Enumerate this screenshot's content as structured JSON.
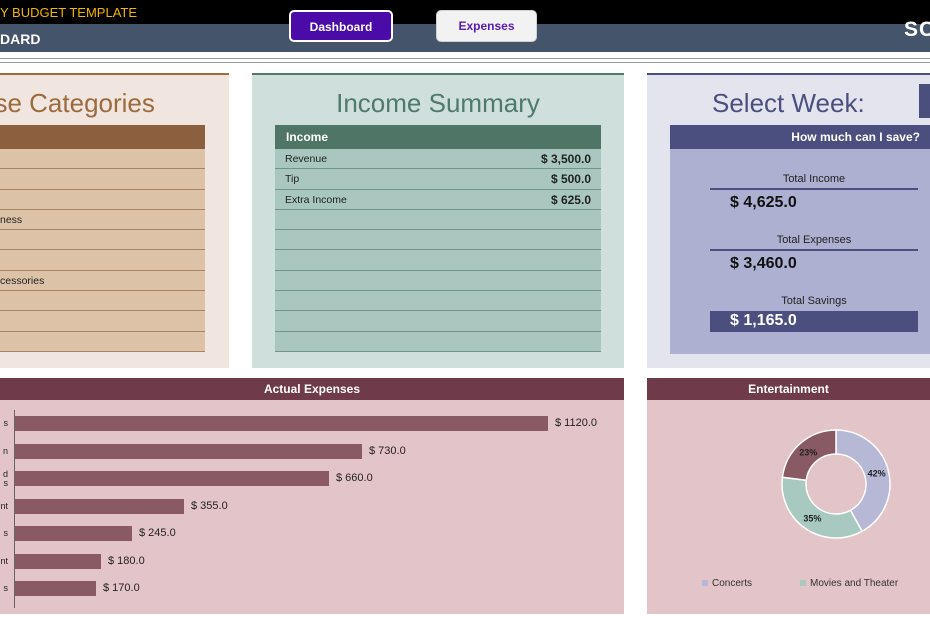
{
  "header": {
    "title_main": "Y BUDGET TEMPLATE",
    "title_sub": "DARD",
    "title_right": "SC",
    "nav": {
      "dashboard_label": "Dashboard",
      "expenses_label": "Expenses"
    }
  },
  "categories": {
    "title": "nse Categories",
    "rows": [
      "",
      "",
      "",
      "ness",
      "",
      "",
      "cessories",
      "",
      "",
      ""
    ]
  },
  "income": {
    "title": "Income Summary",
    "header": "Income",
    "rows": [
      {
        "label": "Revenue",
        "amount": "$  3,500.0"
      },
      {
        "label": "Tip",
        "amount": "$   500.0"
      },
      {
        "label": "Extra Income",
        "amount": "$   625.0"
      },
      {
        "label": "",
        "amount": ""
      },
      {
        "label": "",
        "amount": ""
      },
      {
        "label": "",
        "amount": ""
      },
      {
        "label": "",
        "amount": ""
      },
      {
        "label": "",
        "amount": ""
      },
      {
        "label": "",
        "amount": ""
      },
      {
        "label": "",
        "amount": ""
      }
    ]
  },
  "week": {
    "title": "Select Week:",
    "header": "How much can I save?",
    "total_income_label": "Total Income",
    "total_income_value": "$  4,625.0",
    "total_expenses_label": "Total Expenses",
    "total_expenses_value": "$  3,460.0",
    "total_savings_label": "Total Savings",
    "total_savings_value": "$  1,165.0"
  },
  "colors": {
    "bar": "#8a5a64",
    "concerts": "#b7b8d6",
    "movies": "#a7c9bf",
    "other": "#8a5a64"
  },
  "chart_data": [
    {
      "type": "bar",
      "title": "Actual Expenses",
      "categories": [
        "s",
        "n",
        "d\ns",
        "nt",
        "s",
        "nt",
        "s"
      ],
      "values": [
        1120,
        730,
        660,
        355,
        245,
        180,
        170
      ],
      "data_labels": [
        "$ 1120.0",
        "$ 730.0",
        "$ 660.0",
        "$ 355.0",
        "$ 245.0",
        "$ 180.0",
        "$ 170.0"
      ],
      "xlim": [
        0,
        1200
      ]
    },
    {
      "type": "pie",
      "title": "Entertainment",
      "slices": [
        {
          "name": "Concerts",
          "value": 42,
          "label": "42%"
        },
        {
          "name": "Movies and Theater",
          "value": 35,
          "label": "35%"
        },
        {
          "name": "",
          "value": 23,
          "label": "23%"
        }
      ],
      "legend": [
        "Concerts",
        "Movies and Theater"
      ]
    }
  ]
}
